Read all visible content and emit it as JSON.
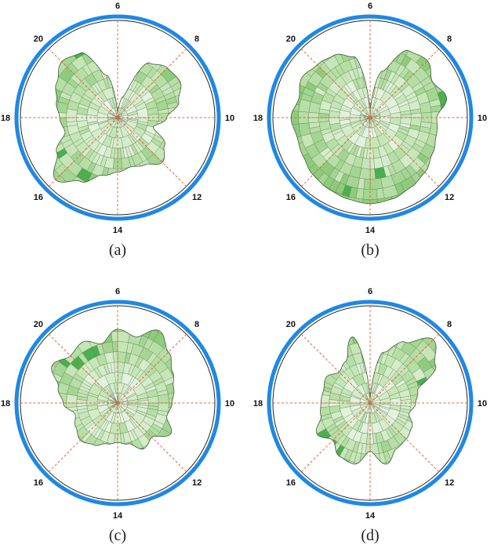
{
  "chart_data": [
    {
      "type": "radial-area",
      "caption": "(a)",
      "angular_ticks": [
        "6",
        "8",
        "10",
        "12",
        "14",
        "16",
        "18",
        "20"
      ],
      "radius_max": 1.0,
      "radii": [
        0.05,
        0.25,
        0.72,
        0.8,
        0.82,
        0.72,
        0.56,
        0.42,
        0.62,
        0.72,
        0.62,
        0.58,
        0.62,
        0.68,
        0.84,
        1.0,
        0.8,
        0.62,
        0.66,
        0.72,
        0.8,
        0.9,
        0.85,
        0.5
      ]
    },
    {
      "type": "radial-area",
      "caption": "(b)",
      "angular_ticks": [
        "6",
        "8",
        "10",
        "12",
        "14",
        "16",
        "18",
        "20"
      ],
      "radius_max": 1.0,
      "radii": [
        0.1,
        0.55,
        0.88,
        0.92,
        0.82,
        0.9,
        0.76,
        0.78,
        0.82,
        0.88,
        0.92,
        0.96,
        0.98,
        0.96,
        0.94,
        0.92,
        0.88,
        0.86,
        0.9,
        0.84,
        0.9,
        0.85,
        0.82,
        0.72
      ]
    },
    {
      "type": "radial-area",
      "caption": "(c)",
      "angular_ticks": [
        "6",
        "8",
        "10",
        "12",
        "14",
        "16",
        "18",
        "20"
      ],
      "radius_max": 1.0,
      "radii": [
        0.84,
        0.78,
        0.95,
        0.82,
        0.72,
        0.66,
        0.62,
        0.58,
        0.7,
        0.55,
        0.6,
        0.48,
        0.45,
        0.48,
        0.55,
        0.6,
        0.55,
        0.5,
        0.62,
        0.7,
        0.86,
        0.76,
        0.8,
        0.7
      ]
    },
    {
      "type": "radial-area",
      "caption": "(d)",
      "angular_ticks": [
        "6",
        "8",
        "10",
        "12",
        "14",
        "16",
        "18",
        "20"
      ],
      "radius_max": 1.0,
      "radii": [
        0.05,
        0.6,
        0.8,
        1.02,
        0.86,
        0.56,
        0.52,
        0.46,
        0.55,
        0.58,
        0.6,
        0.72,
        0.55,
        0.72,
        0.7,
        0.6,
        0.7,
        0.58,
        0.56,
        0.55,
        0.58,
        0.5,
        0.55,
        0.78
      ]
    }
  ]
}
